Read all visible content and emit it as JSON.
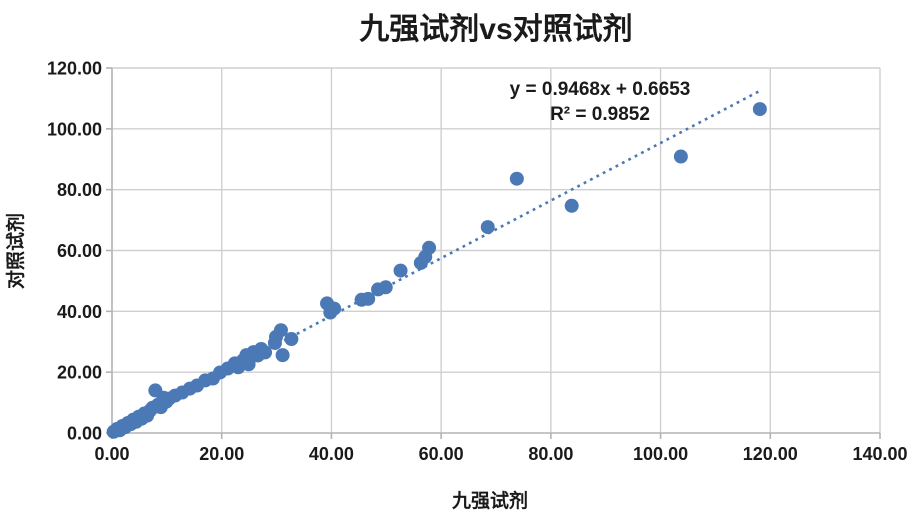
{
  "chart_data": {
    "type": "scatter",
    "title": "九强试剂vs对照试剂",
    "xlabel": "九强试剂",
    "ylabel": "对照试剂",
    "xlim": [
      0,
      140
    ],
    "ylim": [
      0,
      120
    ],
    "x_ticks": [
      "0.00",
      "20.00",
      "40.00",
      "60.00",
      "80.00",
      "100.00",
      "120.00",
      "140.00"
    ],
    "y_ticks": [
      "0.00",
      "20.00",
      "40.00",
      "60.00",
      "80.00",
      "100.00",
      "120.00"
    ],
    "grid": true,
    "legend": "none",
    "points": [
      [
        0.3,
        0.4
      ],
      [
        0.9,
        1.3
      ],
      [
        1.4,
        0.9
      ],
      [
        1.9,
        2.3
      ],
      [
        2.4,
        1.9
      ],
      [
        2.9,
        3.3
      ],
      [
        3.4,
        2.9
      ],
      [
        3.9,
        4.4
      ],
      [
        4.4,
        3.7
      ],
      [
        4.9,
        5.4
      ],
      [
        5.4,
        4.7
      ],
      [
        5.9,
        6.4
      ],
      [
        6.4,
        5.7
      ],
      [
        6.9,
        7.3
      ],
      [
        7.4,
        8.3
      ],
      [
        7.9,
        14.0
      ],
      [
        8.4,
        9.3
      ],
      [
        8.9,
        8.5
      ],
      [
        9.4,
        11.6
      ],
      [
        9.9,
        10.3
      ],
      [
        10.4,
        11.3
      ],
      [
        11.5,
        12.3
      ],
      [
        12.8,
        13.3
      ],
      [
        14.2,
        14.6
      ],
      [
        15.5,
        15.6
      ],
      [
        17.0,
        17.3
      ],
      [
        18.4,
        17.9
      ],
      [
        19.7,
        19.9
      ],
      [
        21.1,
        21.2
      ],
      [
        22.4,
        22.9
      ],
      [
        23.0,
        21.6
      ],
      [
        23.9,
        23.9
      ],
      [
        24.5,
        25.6
      ],
      [
        24.9,
        22.6
      ],
      [
        25.2,
        24.8
      ],
      [
        25.8,
        26.6
      ],
      [
        26.6,
        25.5
      ],
      [
        27.2,
        27.6
      ],
      [
        27.9,
        26.5
      ],
      [
        29.7,
        29.6
      ],
      [
        29.9,
        31.6
      ],
      [
        30.8,
        33.8
      ],
      [
        31.1,
        25.6
      ],
      [
        32.7,
        30.9
      ],
      [
        39.2,
        42.6
      ],
      [
        40.5,
        40.9
      ],
      [
        39.8,
        39.6
      ],
      [
        45.5,
        43.8
      ],
      [
        46.7,
        44.1
      ],
      [
        48.5,
        47.2
      ],
      [
        49.9,
        47.9
      ],
      [
        52.6,
        53.4
      ],
      [
        56.3,
        55.9
      ],
      [
        57.1,
        57.9
      ],
      [
        57.8,
        60.9
      ],
      [
        68.5,
        67.7
      ],
      [
        73.8,
        83.6
      ],
      [
        83.8,
        74.7
      ],
      [
        103.7,
        90.9
      ],
      [
        118.1,
        106.5
      ]
    ],
    "trendline": {
      "equation": "y = 0.9468x + 0.6653",
      "r2_label": "R² = 0.9852",
      "slope": 0.9468,
      "intercept": 0.6653,
      "x_range": [
        0,
        118.2
      ],
      "style": "dotted"
    },
    "colors": {
      "point": "#4a79b5",
      "trend": "#4a79b5",
      "grid": "#cfcfcf",
      "axis": "#b3b3b3",
      "text": "#1a1a1a"
    }
  }
}
